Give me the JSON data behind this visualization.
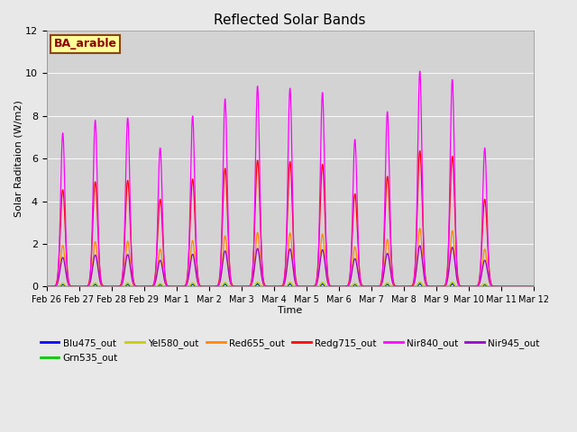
{
  "title": "Reflected Solar Bands",
  "xlabel": "Time",
  "ylabel": "Solar Raditaion (W/m2)",
  "ylim": [
    0,
    12
  ],
  "background_color": "#e8e8e8",
  "plot_bg_color": "#d3d3d3",
  "annotation_text": "BA_arable",
  "annotation_color": "#8B0000",
  "annotation_bg": "#ffff99",
  "annotation_border": "#8B4513",
  "series_colors": {
    "Blu475_out": "#0000ff",
    "Grn535_out": "#00cc00",
    "Yel580_out": "#cccc00",
    "Red655_out": "#ff8800",
    "Redg715_out": "#ff0000",
    "Nir840_out": "#ff00ff",
    "Nir945_out": "#9900cc"
  },
  "nir840_peaks": [
    7.2,
    7.8,
    7.9,
    6.5,
    8.0,
    8.8,
    9.4,
    9.3,
    9.1,
    6.9,
    8.2,
    10.1,
    9.7,
    6.5,
    0.0
  ],
  "peak_widths": {
    "Blu475_out": 0.04,
    "Grn535_out": 0.05,
    "Yel580_out": 0.055,
    "Red655_out": 0.07,
    "Redg715_out": 0.075,
    "Nir840_out": 0.065,
    "Nir945_out": 0.08
  },
  "scale_factors": {
    "Blu475_out": 0.013,
    "Grn535_out": 0.018,
    "Yel580_out": 0.022,
    "Red655_out": 0.27,
    "Redg715_out": 0.63,
    "Nir840_out": 1.0,
    "Nir945_out": 0.19
  },
  "num_days": 15,
  "samples_per_day": 200
}
